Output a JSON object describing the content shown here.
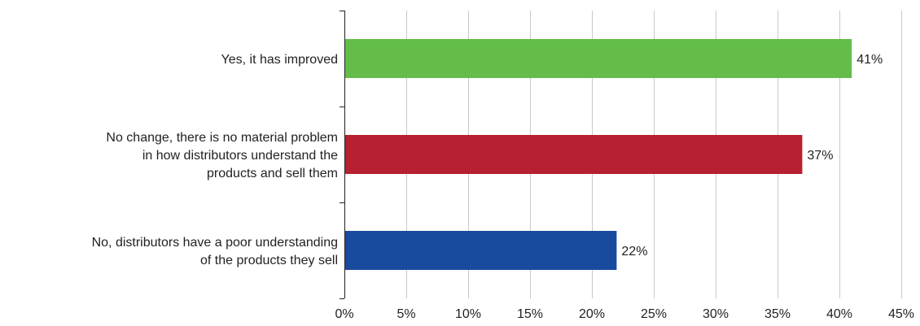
{
  "chart_data": {
    "type": "bar",
    "orientation": "horizontal",
    "title": "",
    "xlabel": "",
    "ylabel": "",
    "categories": [
      "Yes, it has improved",
      "No change, there is no material problem in how distributors understand the products and sell them",
      "No, distributors have a poor understanding of the products they sell"
    ],
    "category_lines": [
      [
        "Yes, it has improved"
      ],
      [
        "No change, there is no material problem",
        "in how distributors understand the",
        "products and sell them"
      ],
      [
        "No, distributors have a poor understanding",
        "of the products they sell"
      ]
    ],
    "values": [
      41,
      37,
      22
    ],
    "value_labels": [
      "41%",
      "37%",
      "22%"
    ],
    "colors": [
      "#64bd4a",
      "#b72030",
      "#1a4a9e"
    ],
    "xlim": [
      0,
      45
    ],
    "xticks": [
      0,
      5,
      10,
      15,
      20,
      25,
      30,
      35,
      40,
      45
    ],
    "xtick_labels": [
      "0%",
      "5%",
      "10%",
      "15%",
      "20%",
      "25%",
      "30%",
      "35%",
      "40%",
      "45%"
    ],
    "grid": "vertical",
    "legend": "none"
  }
}
